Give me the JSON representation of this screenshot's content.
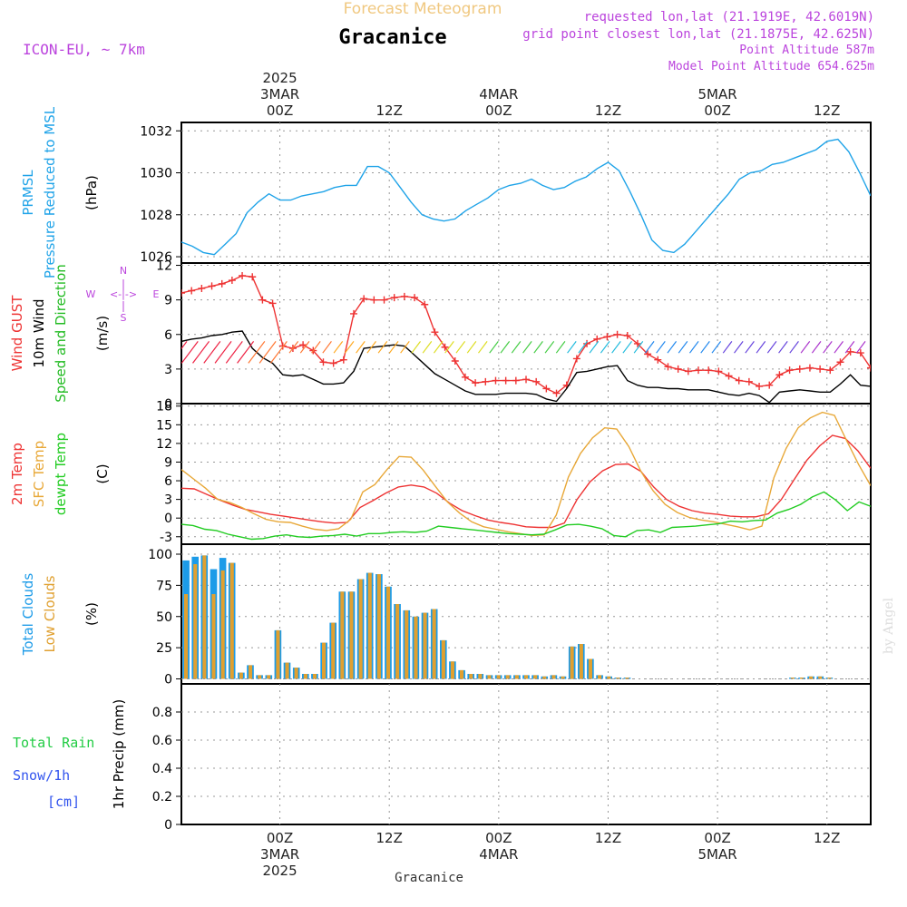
{
  "header": {
    "product": "Forecast Meteogram",
    "location": "Gracanice",
    "model": "ICON-EU, ~ 7km",
    "requested": "requested lon,lat (21.1919E, 42.6019N)",
    "gridpoint": "grid point closest lon,lat (21.1875E, 42.625N)",
    "point_alt": "Point Altitude 587m",
    "model_alt": "Model Point Altitude 654.625m",
    "watermark": "by Angel",
    "footer_location": "Gracanice"
  },
  "colors": {
    "pressure": "#1fa3e8",
    "gust": "#ee3333",
    "wind": "#000000",
    "wind_dir": "#22bb22",
    "temp2m": "#ee3333",
    "sfc": "#e8a838",
    "dewpt": "#22cc22",
    "total_cloud": "#1c9be8",
    "low_cloud": "#e0a030",
    "rain": "#22cc44",
    "snow": "#3355ee",
    "title_orange": "#f0c880",
    "purple": "#bb44dd"
  },
  "chart_data": {
    "time_axis": {
      "start_hour": -9,
      "end_hour": 54,
      "step_hours": 1,
      "top_labels": [
        {
          "hour": 0,
          "lines": [
            "2025",
            "3MAR",
            "00Z"
          ]
        },
        {
          "hour": 10,
          "lines": [
            "12Z"
          ]
        },
        {
          "hour": 20,
          "lines": [
            "4MAR",
            "00Z"
          ]
        },
        {
          "hour": 30,
          "lines": [
            "12Z"
          ]
        },
        {
          "hour": 40,
          "lines": [
            "5MAR",
            "00Z"
          ]
        },
        {
          "hour": 50,
          "lines": [
            "12Z"
          ]
        }
      ],
      "bottom_labels": [
        {
          "hour": 0,
          "lines": [
            "00Z",
            "3MAR",
            "2025"
          ]
        },
        {
          "hour": 10,
          "lines": [
            "12Z"
          ]
        },
        {
          "hour": 20,
          "lines": [
            "00Z",
            "4MAR"
          ]
        },
        {
          "hour": 30,
          "lines": [
            "12Z"
          ]
        },
        {
          "hour": 40,
          "lines": [
            "00Z",
            "5MAR"
          ]
        },
        {
          "hour": 50,
          "lines": [
            "12Z"
          ]
        }
      ]
    },
    "panels": [
      {
        "id": "pressure",
        "type": "line",
        "ylabel_lines": [
          {
            "text": "PRMSL",
            "color": "#1fa3e8"
          },
          {
            "text": "Pressure Reduced to MSL",
            "color": "#1fa3e8"
          },
          {
            "text": "(hPa)",
            "color": "#000000"
          }
        ],
        "ylim": [
          1025.7,
          1032.4
        ],
        "yticks": [
          1026,
          1028,
          1030,
          1032
        ],
        "series": [
          {
            "name": "PRMSL",
            "color": "#1fa3e8",
            "values": [
              1026.7,
              1026.5,
              1026.2,
              1026.1,
              1026.6,
              1027.1,
              1028.1,
              1028.6,
              1029.0,
              1028.7,
              1028.7,
              1028.9,
              1029.0,
              1029.1,
              1029.3,
              1029.4,
              1029.4,
              1030.3,
              1030.3,
              1030.0,
              1029.3,
              1028.6,
              1028.0,
              1027.8,
              1027.7,
              1027.8,
              1028.2,
              1028.5,
              1028.8,
              1029.2,
              1029.4,
              1029.5,
              1029.7,
              1029.4,
              1029.2,
              1029.3,
              1029.6,
              1029.8,
              1030.2,
              1030.5,
              1030.1,
              1029.1,
              1028.0,
              1026.8,
              1026.3,
              1026.2,
              1026.6,
              1027.2,
              1027.8,
              1028.4,
              1029.0,
              1029.7,
              1030.0,
              1030.1,
              1030.4,
              1030.5,
              1030.7,
              1030.9,
              1031.1,
              1031.5,
              1031.6,
              1031.0,
              1030.0,
              1028.9
            ]
          }
        ]
      },
      {
        "id": "wind",
        "type": "line",
        "ylabel_lines": [
          {
            "text": "Wind GUST",
            "color": "#ee3333"
          },
          {
            "text": "10m Wind",
            "color": "#000000"
          },
          {
            "text": "Speed and Direction",
            "color": "#22bb22"
          },
          {
            "text": "(m/s)",
            "color": "#000000"
          }
        ],
        "compass": {
          "w": "W",
          "e": "E",
          "n": "N",
          "s": "S",
          "arrow": "<-|->"
        },
        "ylim": [
          0,
          12.2
        ],
        "yticks": [
          0,
          3,
          6,
          9,
          12
        ],
        "series": [
          {
            "name": "Wind GUST",
            "color": "#ee3333",
            "marker": "plus",
            "values": [
              9.6,
              9.8,
              10.0,
              10.2,
              10.4,
              10.7,
              11.1,
              11.0,
              9.0,
              8.7,
              5.0,
              4.8,
              5.1,
              4.6,
              3.6,
              3.5,
              3.8,
              7.8,
              9.1,
              9.0,
              9.0,
              9.2,
              9.3,
              9.2,
              8.6,
              6.2,
              4.9,
              3.7,
              2.3,
              1.8,
              1.9,
              2.0,
              2.0,
              2.0,
              2.1,
              1.9,
              1.3,
              0.9,
              1.6,
              3.9,
              5.2,
              5.6,
              5.8,
              6.0,
              5.9,
              5.2,
              4.3,
              3.8,
              3.2,
              3.0,
              2.8,
              2.9,
              2.9,
              2.8,
              2.4,
              2.0,
              1.9,
              1.5,
              1.6,
              2.5,
              2.9,
              3.0,
              3.1,
              3.0,
              2.9,
              3.6,
              4.5,
              4.4,
              3.1
            ]
          },
          {
            "name": "10m Wind",
            "color": "#000000",
            "values": [
              5.4,
              5.6,
              5.7,
              5.9,
              6.0,
              6.2,
              6.3,
              4.8,
              4.0,
              3.5,
              2.5,
              2.4,
              2.5,
              2.1,
              1.7,
              1.7,
              1.8,
              2.8,
              4.8,
              4.9,
              5.0,
              5.1,
              5.0,
              4.2,
              3.4,
              2.6,
              2.1,
              1.6,
              1.1,
              0.8,
              0.8,
              0.8,
              0.9,
              0.9,
              0.9,
              0.8,
              0.4,
              0.2,
              1.3,
              2.7,
              2.8,
              3.0,
              3.2,
              3.3,
              2.0,
              1.6,
              1.4,
              1.4,
              1.3,
              1.3,
              1.2,
              1.2,
              1.2,
              1.0,
              0.8,
              0.7,
              0.9,
              0.7,
              0.1,
              1.0,
              1.1,
              1.2,
              1.1,
              1.0,
              1.0,
              1.7,
              2.5,
              1.6,
              1.5
            ]
          }
        ]
      },
      {
        "id": "temperature",
        "type": "line",
        "ylabel_lines": [
          {
            "text": "2m Temp",
            "color": "#ee3333"
          },
          {
            "text": "SFC Temp",
            "color": "#e8a838"
          },
          {
            "text": "dewpt Temp",
            "color": "#22cc22"
          },
          {
            "text": "(C)",
            "color": "#000000"
          }
        ],
        "ylim": [
          -4.2,
          18.4
        ],
        "yticks": [
          -3,
          0,
          3,
          6,
          9,
          12,
          15,
          18
        ],
        "series": [
          {
            "name": "2m Temp",
            "color": "#ee3333",
            "values": [
              4.8,
              4.7,
              3.8,
              2.9,
              2.1,
              1.4,
              1.0,
              0.6,
              0.3,
              0.0,
              -0.3,
              -0.6,
              -0.8,
              -0.7,
              1.7,
              2.8,
              4.0,
              5.0,
              5.3,
              5.0,
              4.0,
              2.4,
              1.2,
              0.4,
              -0.3,
              -0.7,
              -1.0,
              -1.4,
              -1.5,
              -1.5,
              -0.8,
              3.0,
              5.8,
              7.6,
              8.6,
              8.7,
              7.5,
              5.0,
              3.0,
              1.9,
              1.2,
              0.8,
              0.6,
              0.3,
              0.2,
              0.2,
              0.7,
              3.0,
              6.2,
              9.3,
              11.6,
              13.3,
              12.8,
              10.8,
              8.0
            ]
          },
          {
            "name": "SFC Temp",
            "color": "#e8a838",
            "values": [
              7.8,
              6.3,
              4.8,
              3.0,
              2.5,
              1.7,
              0.7,
              -0.2,
              -0.6,
              -0.7,
              -1.3,
              -1.8,
              -2.0,
              -1.7,
              -0.2,
              4.2,
              5.4,
              7.8,
              9.9,
              9.8,
              7.7,
              5.1,
              2.6,
              0.8,
              -0.6,
              -1.4,
              -1.8,
              -2.2,
              -2.5,
              -2.8,
              -2.7,
              0.5,
              6.6,
              10.4,
              12.9,
              14.5,
              14.3,
              11.5,
              7.5,
              4.4,
              2.2,
              0.9,
              0.1,
              -0.3,
              -0.6,
              -1.0,
              -1.4,
              -1.9,
              -1.3,
              6.5,
              11.2,
              14.5,
              16.1,
              17.0,
              16.5,
              12.5,
              8.6,
              5.2
            ]
          },
          {
            "name": "dewpt Temp",
            "color": "#22cc22",
            "values": [
              -1.0,
              -1.2,
              -1.8,
              -2.0,
              -2.6,
              -3.0,
              -3.4,
              -3.3,
              -2.9,
              -2.7,
              -3.0,
              -3.1,
              -2.9,
              -2.8,
              -2.6,
              -2.9,
              -2.5,
              -2.5,
              -2.3,
              -2.2,
              -2.3,
              -2.1,
              -1.3,
              -1.5,
              -1.7,
              -1.9,
              -2.1,
              -2.3,
              -2.5,
              -2.6,
              -2.7,
              -2.6,
              -1.9,
              -1.1,
              -1.0,
              -1.3,
              -1.7,
              -2.8,
              -3.0,
              -2.0,
              -1.9,
              -2.3,
              -1.5,
              -1.4,
              -1.3,
              -1.1,
              -0.9,
              -0.5,
              -0.6,
              -0.4,
              -0.3,
              0.8,
              1.4,
              2.2,
              3.4,
              4.2,
              2.9,
              1.2,
              2.6,
              1.9
            ]
          }
        ]
      },
      {
        "id": "clouds",
        "type": "bar",
        "ylabel_lines": [
          {
            "text": "Total Clouds",
            "color": "#1c9be8"
          },
          {
            "text": "Low Clouds",
            "color": "#e0a030"
          },
          {
            "text": "(%)",
            "color": "#000000"
          }
        ],
        "ylim": [
          -4,
          108
        ],
        "yticks": [
          0,
          25,
          50,
          75,
          100
        ],
        "series": [
          {
            "name": "Total Clouds",
            "color": "#1c9be8",
            "values": [
              95,
              98,
              99,
              88,
              97,
              93,
              5,
              11,
              3,
              3,
              39,
              13,
              9,
              4,
              4,
              29,
              45,
              70,
              70,
              80,
              85,
              84,
              74,
              60,
              55,
              50,
              53,
              56,
              31,
              14,
              7,
              4,
              4,
              3,
              3,
              3,
              3,
              3,
              3,
              2,
              3,
              2,
              26,
              28,
              16,
              3,
              2,
              1,
              1,
              0,
              0,
              0,
              0,
              0,
              0,
              0,
              0,
              0,
              0,
              0,
              0,
              0,
              0,
              0,
              0,
              0,
              1,
              1,
              2,
              2,
              1,
              0,
              0,
              0,
              0
            ]
          },
          {
            "name": "Low Clouds",
            "color": "#e0a030",
            "values": [
              68,
              92,
              99,
              68,
              87,
              93,
              5,
              11,
              3,
              3,
              39,
              13,
              9,
              4,
              4,
              29,
              45,
              70,
              70,
              80,
              85,
              84,
              74,
              60,
              55,
              50,
              53,
              56,
              31,
              14,
              7,
              4,
              4,
              3,
              3,
              3,
              3,
              3,
              3,
              2,
              3,
              2,
              26,
              28,
              16,
              3,
              2,
              1,
              1,
              0,
              0,
              0,
              0,
              0,
              0,
              0,
              0,
              0,
              0,
              0,
              0,
              0,
              0,
              0,
              0,
              0,
              1,
              1,
              2,
              2,
              1,
              0,
              0,
              0,
              0
            ]
          }
        ]
      },
      {
        "id": "precip",
        "type": "bar",
        "ylabel_lines": [
          {
            "text": "1hr Precip (mm)",
            "color": "#000000"
          }
        ],
        "left_labels": [
          {
            "text": "Total  Rain",
            "color": "#22cc44"
          },
          {
            "text": "Snow/1h",
            "color": "#3355ee"
          },
          {
            "text": "[cm]",
            "color": "#3355ee"
          }
        ],
        "ylim": [
          0,
          1.0
        ],
        "yticks": [
          0,
          0.2,
          0.4,
          0.6,
          0.8
        ],
        "series": [
          {
            "name": "Total Rain",
            "color": "#22cc44",
            "values": []
          }
        ]
      }
    ]
  }
}
